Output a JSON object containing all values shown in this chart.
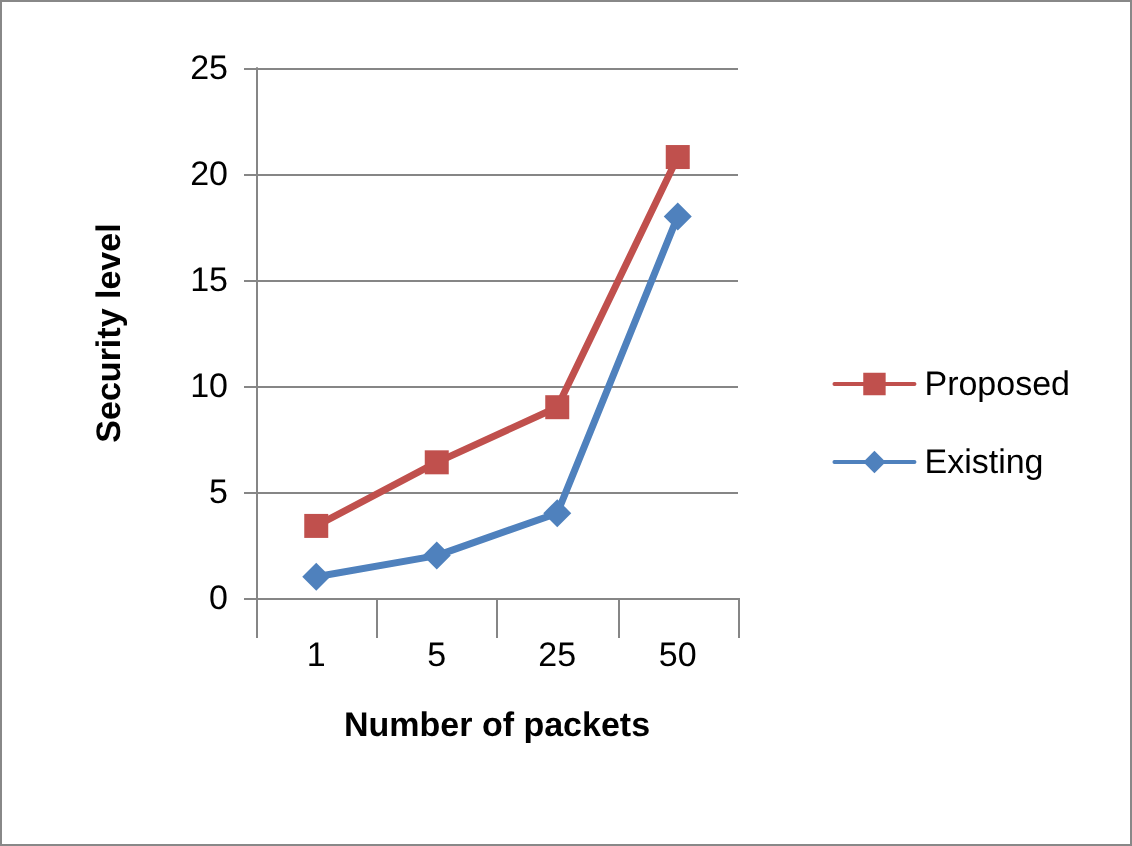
{
  "chart_data": {
    "type": "line",
    "xlabel": "Number of packets",
    "ylabel": "Security level",
    "categories": [
      "1",
      "5",
      "25",
      "50"
    ],
    "series": [
      {
        "name": "Proposed",
        "color": "#c0504d",
        "marker": "square",
        "values": [
          3.4,
          6.4,
          9,
          20.8
        ]
      },
      {
        "name": "Existing",
        "color": "#4f81bd",
        "marker": "diamond",
        "values": [
          1,
          2,
          4,
          18
        ]
      }
    ],
    "ylim": [
      0,
      25
    ],
    "yticks": [
      0,
      5,
      10,
      15,
      20,
      25
    ],
    "grid": "y",
    "legend": "right",
    "line_style": "solid"
  }
}
